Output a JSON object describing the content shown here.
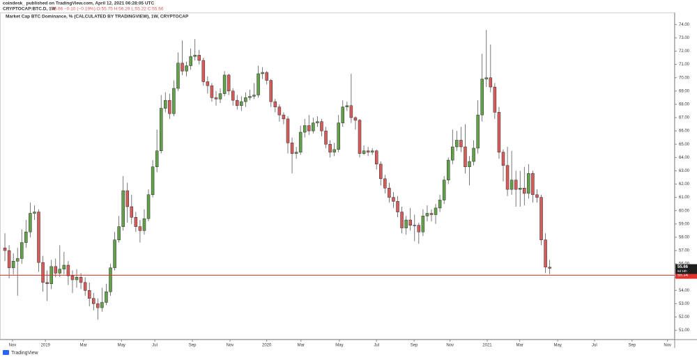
{
  "header": {
    "publisher": "coindesk_ published on TradingView.com, April 12, 2021 06:28:05 UTC",
    "symbol": "CRYPTOCAP:BTC.D, 1W",
    "quote": "55.66 −0.10 (−0.19%) O:55.75 H:56.29 L:55.22 C:55.66"
  },
  "footer": {
    "brand": "TradingView"
  },
  "chart_data": {
    "type": "candlestick",
    "title": "Market Cap BTC Dominance, % (CALCULATED BY TRADINGVIEW), 1W, CRYPTOCAP",
    "up_color": "#62a04a",
    "down_color": "#d65c5c",
    "border_color": "#2b2b2b",
    "open": [
      57.2,
      57.0,
      55.7,
      56.2,
      56.4,
      57.6,
      58.4,
      59.8,
      59.9,
      56.1,
      54.6,
      54.5,
      55.8,
      55.3,
      55.6,
      55.9,
      55.1,
      54.8,
      55.0,
      54.6,
      54.0,
      53.4,
      53.0,
      52.7,
      53.1,
      53.9,
      55.7,
      57.8,
      58.8,
      61.5,
      60.3,
      59.5,
      58.8,
      58.5,
      59.4,
      61.2,
      63.3,
      64.5,
      67.7,
      68.3,
      67.3,
      69.2,
      71.1,
      70.5,
      70.9,
      71.6,
      71.7,
      71.3,
      69.7,
      69.4,
      68.5,
      68.4,
      68.8,
      70.2,
      69.0,
      68.3,
      67.9,
      68.2,
      68.5,
      68.6,
      68.7,
      70.3,
      70.4,
      69.8,
      68.2,
      67.8,
      67.2,
      66.9,
      65.1,
      64.3,
      64.4,
      65.9,
      66.4,
      66.0,
      66.6,
      66.7,
      66.0,
      65.0,
      64.4,
      64.6,
      66.6,
      67.8,
      67.9,
      67.0,
      66.8,
      64.3,
      64.5,
      64.4,
      64.5,
      63.5,
      62.4,
      61.7,
      61.0,
      60.7,
      59.9,
      58.7,
      59.3,
      58.9,
      58.9,
      58.4,
      59.6,
      59.8,
      59.7,
      60.2,
      60.8,
      62.3,
      63.8,
      64.8,
      65.3,
      64.8,
      63.3,
      63.7,
      64.7,
      67.2,
      69.9,
      70.0,
      69.3,
      67.4,
      64.4,
      63.4,
      61.6,
      62.3,
      61.6,
      61.7,
      61.3,
      62.8,
      61.2,
      61.0,
      57.8,
      55.75
    ],
    "high": [
      58.3,
      57.4,
      56.8,
      57.2,
      58.6,
      59.3,
      60.6,
      60.4,
      60.1,
      56.6,
      55.5,
      56.3,
      56.4,
      57.4,
      56.9,
      56.2,
      55.5,
      55.6,
      55.3,
      55.0,
      54.6,
      53.8,
      53.4,
      54.2,
      54.5,
      56.0,
      58.4,
      59.6,
      62.6,
      62.1,
      61.2,
      59.9,
      59.3,
      60.1,
      61.6,
      63.8,
      66.1,
      68.7,
      68.9,
      68.8,
      69.8,
      71.9,
      72.8,
      71.2,
      72.2,
      72.9,
      72.1,
      71.5,
      70.1,
      69.6,
      69.0,
      69.2,
      70.5,
      70.3,
      69.2,
      68.7,
      68.6,
      68.9,
      69.1,
      69.6,
      70.9,
      70.8,
      70.5,
      69.9,
      68.4,
      68.0,
      67.4,
      67.1,
      65.5,
      64.8,
      66.4,
      66.9,
      67.2,
      67.0,
      67.1,
      66.9,
      66.3,
      65.3,
      65.1,
      67.2,
      68.3,
      68.2,
      70.3,
      67.1,
      66.9,
      64.9,
      64.8,
      64.7,
      64.6,
      63.7,
      62.7,
      62.1,
      61.4,
      61.1,
      60.3,
      59.6,
      60.2,
      59.7,
      59.1,
      60.1,
      60.4,
      60.1,
      60.5,
      61.2,
      62.6,
      64.0,
      66.1,
      66.0,
      66.3,
      66.5,
      64.1,
      65.3,
      68.3,
      71.8,
      73.6,
      72.5,
      69.6,
      67.8,
      64.6,
      64.8,
      64.5,
      63.0,
      63.0,
      63.3,
      63.5,
      63.0,
      61.6,
      61.2,
      58.3,
      56.29
    ],
    "low": [
      56.2,
      54.9,
      55.2,
      53.6,
      56.0,
      57.2,
      58.0,
      59.3,
      55.4,
      53.9,
      53.2,
      54.1,
      55.0,
      55.0,
      55.2,
      54.4,
      53.8,
      54.2,
      54.1,
      53.6,
      52.8,
      52.5,
      51.8,
      52.4,
      52.9,
      53.6,
      55.5,
      57.6,
      58.5,
      59.1,
      59.0,
      58.4,
      57.6,
      58.2,
      59.2,
      61.0,
      62.9,
      64.3,
      67.4,
      66.9,
      67.1,
      69.0,
      70.2,
      70.1,
      70.6,
      71.3,
      71.0,
      69.4,
      68.8,
      68.2,
      67.9,
      68.1,
      68.6,
      68.7,
      67.9,
      67.6,
      67.5,
      67.8,
      68.3,
      68.4,
      68.5,
      69.9,
      69.5,
      67.8,
      67.4,
      66.7,
      66.5,
      64.3,
      62.8,
      63.9,
      64.2,
      65.5,
      65.7,
      65.8,
      66.3,
      65.6,
      64.7,
      64.0,
      64.1,
      64.4,
      66.3,
      67.5,
      66.6,
      66.1,
      64.0,
      64.2,
      64.1,
      64.2,
      63.1,
      61.9,
      61.3,
      60.6,
      60.2,
      59.5,
      58.3,
      58.2,
      58.5,
      57.7,
      57.5,
      58.1,
      59.2,
      59.2,
      59.0,
      59.9,
      60.5,
      62.0,
      63.5,
      64.5,
      64.4,
      62.8,
      61.9,
      63.4,
      64.3,
      66.7,
      69.3,
      68.9,
      66.9,
      63.9,
      62.2,
      61.1,
      61.2,
      60.3,
      60.3,
      60.4,
      60.9,
      60.6,
      60.6,
      57.4,
      55.3,
      55.22
    ],
    "close": [
      57.0,
      55.7,
      56.2,
      56.4,
      57.6,
      58.4,
      59.8,
      59.9,
      56.1,
      54.6,
      54.5,
      55.8,
      55.3,
      55.6,
      55.9,
      55.1,
      54.8,
      55.0,
      54.6,
      54.0,
      53.4,
      53.0,
      52.7,
      53.1,
      53.9,
      55.7,
      57.8,
      58.8,
      61.5,
      60.3,
      59.5,
      58.8,
      58.5,
      59.4,
      61.2,
      63.3,
      64.5,
      67.7,
      68.3,
      67.3,
      69.2,
      71.1,
      70.5,
      70.9,
      71.6,
      71.7,
      71.3,
      69.7,
      69.4,
      68.5,
      68.4,
      68.8,
      70.2,
      69.0,
      68.3,
      67.9,
      68.2,
      68.5,
      68.6,
      68.7,
      70.3,
      70.4,
      69.8,
      68.2,
      67.8,
      67.2,
      66.9,
      65.1,
      64.3,
      64.4,
      65.9,
      66.4,
      66.0,
      66.6,
      66.7,
      66.0,
      65.0,
      64.4,
      64.6,
      66.6,
      67.8,
      67.9,
      67.0,
      66.8,
      64.3,
      64.5,
      64.4,
      64.5,
      63.5,
      62.4,
      61.7,
      61.0,
      60.7,
      59.9,
      58.7,
      59.3,
      58.9,
      58.9,
      58.4,
      59.6,
      59.8,
      59.7,
      60.2,
      60.8,
      62.3,
      63.8,
      64.8,
      65.3,
      64.8,
      63.3,
      63.7,
      64.7,
      67.2,
      69.9,
      70.0,
      69.3,
      67.4,
      64.4,
      63.4,
      61.6,
      62.3,
      61.6,
      61.7,
      61.3,
      62.8,
      61.2,
      61.0,
      57.8,
      55.75,
      55.66
    ],
    "countdown": "6d 18h",
    "hline": {
      "value": 55.14,
      "color": "#e0312b"
    },
    "xlim": [
      -1.16,
      158.6
    ],
    "xticks": [
      {
        "value": 1.8,
        "label": "Nov"
      },
      {
        "value": 9.6,
        "label": "2019"
      },
      {
        "value": 18.6,
        "label": "Mar"
      },
      {
        "value": 27.6,
        "label": "May"
      },
      {
        "value": 35.5,
        "label": "Jul"
      },
      {
        "value": 44.4,
        "label": "Sep"
      },
      {
        "value": 53.3,
        "label": "Nov"
      },
      {
        "value": 62.0,
        "label": "2020"
      },
      {
        "value": 70.1,
        "label": "Mar"
      },
      {
        "value": 79.2,
        "label": "May"
      },
      {
        "value": 88.0,
        "label": "Jul"
      },
      {
        "value": 96.9,
        "label": "Sep"
      },
      {
        "value": 105.4,
        "label": "Nov"
      },
      {
        "value": 114.2,
        "label": "2021"
      },
      {
        "value": 121.9,
        "label": "Mar"
      },
      {
        "value": 130.9,
        "label": "May"
      },
      {
        "value": 139.6,
        "label": "Jul"
      },
      {
        "value": 148.5,
        "label": "Sep"
      },
      {
        "value": 156.9,
        "label": "Nov"
      }
    ],
    "ylim": [
      50.3,
      74.8
    ],
    "yticks": [
      {
        "value": 51,
        "label": "51.00"
      },
      {
        "value": 52,
        "label": "52.00"
      },
      {
        "value": 53,
        "label": "53.00"
      },
      {
        "value": 54,
        "label": "54.00"
      },
      {
        "value": 55,
        "label": "55.00"
      },
      {
        "value": 56,
        "label": "56.00"
      },
      {
        "value": 57,
        "label": "57.00"
      },
      {
        "value": 58,
        "label": "58.00"
      },
      {
        "value": 59,
        "label": "59.00"
      },
      {
        "value": 60,
        "label": "60.00"
      },
      {
        "value": 61,
        "label": "61.00"
      },
      {
        "value": 62,
        "label": "62.00"
      },
      {
        "value": 63,
        "label": "63.00"
      },
      {
        "value": 64,
        "label": "64.00"
      },
      {
        "value": 65,
        "label": "65.00"
      },
      {
        "value": 66,
        "label": "66.00"
      },
      {
        "value": 67,
        "label": "67.00"
      },
      {
        "value": 68,
        "label": "68.00"
      },
      {
        "value": 69,
        "label": "69.00"
      },
      {
        "value": 70,
        "label": "70.00"
      },
      {
        "value": 71,
        "label": "71.00"
      },
      {
        "value": 72,
        "label": "72.00"
      },
      {
        "value": 73,
        "label": "73.00"
      },
      {
        "value": 74,
        "label": "74.00"
      }
    ],
    "grid": false
  }
}
